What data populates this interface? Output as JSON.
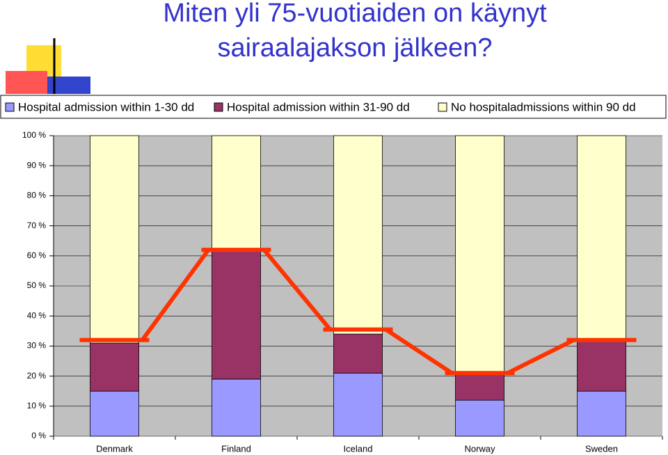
{
  "chart_data": {
    "type": "stacked_bar",
    "title": "Miten yli 75-vuotiaiden on käynyt sairaalajakson jälkeen?",
    "categories": [
      "Denmark",
      "Finland",
      "Iceland",
      "Norway",
      "Sweden"
    ],
    "series": [
      {
        "name": "Hospital admission within 1-30 dd",
        "color": "#9999ff",
        "values": [
          15,
          19,
          21,
          12,
          15
        ]
      },
      {
        "name": "Hospital admission within 31-90 dd",
        "color": "#993366",
        "values": [
          16,
          43,
          13,
          9,
          17
        ]
      },
      {
        "name": "No hospitaladmissions within 90 dd",
        "color": "#ffffcc",
        "values": [
          69,
          38,
          66,
          79,
          68
        ]
      }
    ],
    "line": {
      "color": "#ff3300",
      "values": [
        32,
        62,
        35.5,
        21,
        32
      ]
    },
    "ylim": [
      0,
      100
    ],
    "yticks": [
      {
        "value": 0,
        "label": "0 %"
      },
      {
        "value": 10,
        "label": "10 %"
      },
      {
        "value": 20,
        "label": "20 %"
      },
      {
        "value": 30,
        "label": "30 %"
      },
      {
        "value": 40,
        "label": "40 %"
      },
      {
        "value": 50,
        "label": "50 %"
      },
      {
        "value": 60,
        "label": "60 %"
      },
      {
        "value": 70,
        "label": "70 %"
      },
      {
        "value": 80,
        "label": "80 %"
      },
      {
        "value": 90,
        "label": "90 %"
      },
      {
        "value": 100,
        "label": "100 %"
      }
    ],
    "grid": true
  }
}
